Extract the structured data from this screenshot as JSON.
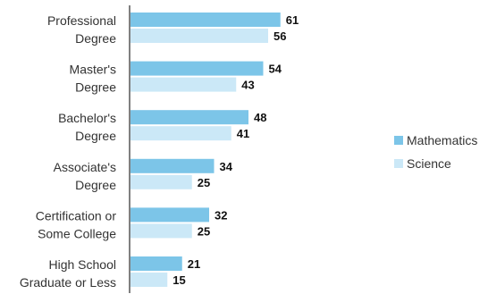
{
  "chart_data": {
    "type": "bar",
    "orientation": "horizontal",
    "categories": [
      [
        "Professional",
        "Degree"
      ],
      [
        "Master's",
        "Degree"
      ],
      [
        "Bachelor's",
        "Degree"
      ],
      [
        "Associate's",
        "Degree"
      ],
      [
        "Certification or",
        "Some College"
      ],
      [
        "High School",
        "Graduate or Less"
      ]
    ],
    "series": [
      {
        "name": "Mathematics",
        "values": [
          61,
          54,
          48,
          34,
          32,
          21
        ],
        "color": "#7cc5e8"
      },
      {
        "name": "Science",
        "values": [
          56,
          43,
          41,
          25,
          25,
          15
        ],
        "color": "#cbe8f7"
      }
    ],
    "xlim": [
      0,
      70
    ],
    "grid": false,
    "legend_position": "right"
  }
}
